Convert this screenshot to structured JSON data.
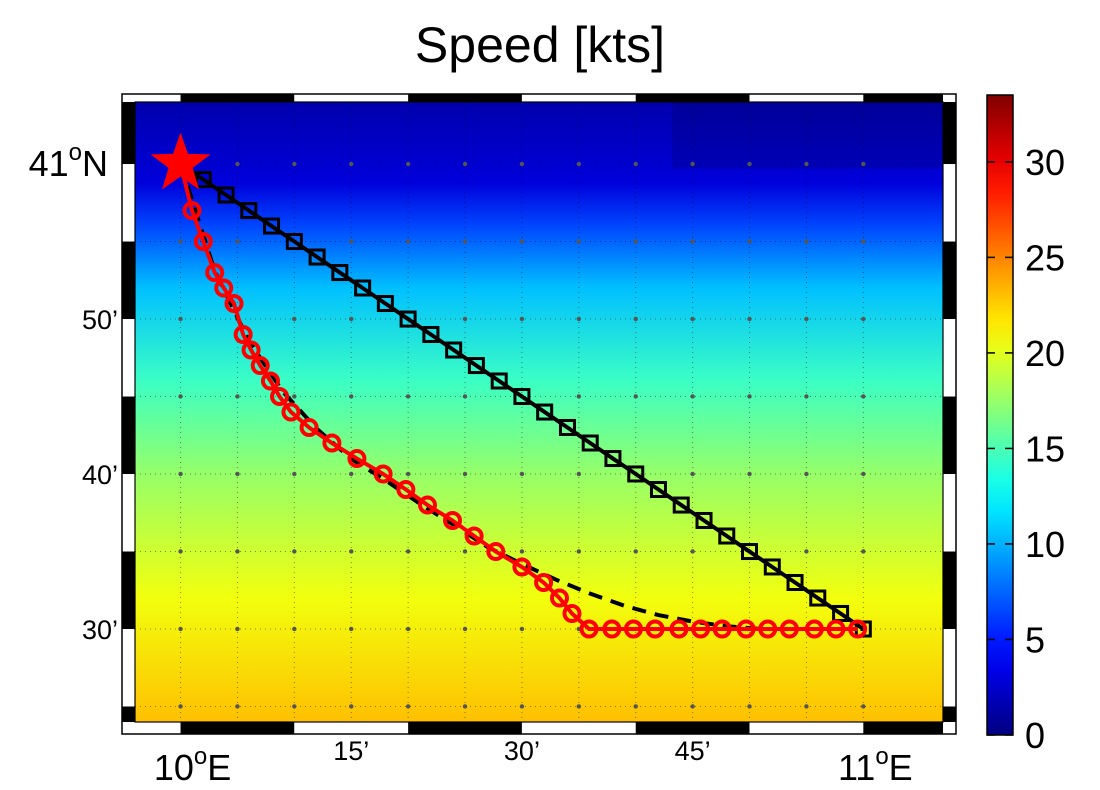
{
  "title": "Speed [kts]",
  "map": {
    "lon_range": [
      9.9333,
      11.1167
    ],
    "lat_range": [
      40.4,
      41.0667
    ],
    "lon_ticks": [
      {
        "value": 10.0,
        "main": "10",
        "sup": "o",
        "suffix": "E",
        "major": true
      },
      {
        "value": 10.25,
        "main": "15’",
        "sup": "",
        "suffix": "",
        "major": false
      },
      {
        "value": 10.5,
        "main": "30’",
        "sup": "",
        "suffix": "",
        "major": false
      },
      {
        "value": 10.75,
        "main": "45’",
        "sup": "",
        "suffix": "",
        "major": false
      },
      {
        "value": 11.0,
        "main": "11",
        "sup": "o",
        "suffix": "E",
        "major": true
      }
    ],
    "lat_ticks": [
      {
        "value": 41.0,
        "main": "41",
        "sup": "o",
        "suffix": "N",
        "major": true
      },
      {
        "value": 40.8333,
        "main": "50’",
        "sup": "",
        "suffix": "",
        "major": false
      },
      {
        "value": 40.6667,
        "main": "40’",
        "sup": "",
        "suffix": "",
        "major": false
      },
      {
        "value": 40.5,
        "main": "30’",
        "sup": "",
        "suffix": "",
        "major": false
      }
    ],
    "start_marker": {
      "lon": 10.0,
      "lat": 41.0,
      "color": "#ff0000",
      "shape": "star"
    },
    "background_field": "speed shading increasing southward (dark blue north to yellow south)"
  },
  "chart_data": {
    "type": "line",
    "title": "Speed [kts]",
    "xlabel": "",
    "ylabel": "",
    "xlim": [
      9.9333,
      11.1167
    ],
    "ylim": [
      40.4,
      41.0667
    ],
    "series": [
      {
        "style": "black line, square markers",
        "color": "#000000",
        "x": [
          10.0,
          10.0333,
          10.0667,
          10.1,
          10.1333,
          10.1667,
          10.2,
          10.2333,
          10.2667,
          10.3,
          10.3333,
          10.3667,
          10.4,
          10.4333,
          10.4667,
          10.5,
          10.5333,
          10.5667,
          10.6,
          10.6333,
          10.6667,
          10.7,
          10.7333,
          10.7667,
          10.8,
          10.8333,
          10.8667,
          10.9,
          10.9333,
          10.9667,
          11.0
        ],
        "y": [
          41.0,
          40.9833,
          40.9667,
          40.95,
          40.9333,
          40.9167,
          40.9,
          40.8833,
          40.8667,
          40.85,
          40.8333,
          40.8167,
          40.8,
          40.7833,
          40.7667,
          40.75,
          40.7333,
          40.7167,
          40.7,
          40.6833,
          40.6667,
          40.65,
          40.6333,
          40.6167,
          40.6,
          40.5833,
          40.5667,
          40.55,
          40.5333,
          40.5167,
          40.5
        ]
      },
      {
        "style": "red line, circle markers",
        "color": "#ff0000",
        "x": [
          10.0,
          10.0167,
          10.0333,
          10.05,
          10.0633,
          10.0783,
          10.0917,
          10.1033,
          10.1167,
          10.1317,
          10.145,
          10.1617,
          10.1883,
          10.2217,
          10.2583,
          10.2967,
          10.33,
          10.3617,
          10.3983,
          10.43,
          10.4617,
          10.5,
          10.5317,
          10.555,
          10.5733,
          10.5983,
          10.6317,
          10.6633,
          10.695,
          10.73,
          10.7617,
          10.7933,
          10.8283,
          10.86,
          10.8917,
          10.9283,
          10.96,
          10.9917
        ],
        "y": [
          41.0,
          40.95,
          40.9167,
          40.8833,
          40.8667,
          40.85,
          40.8167,
          40.8,
          40.7833,
          40.7667,
          40.75,
          40.7333,
          40.7167,
          40.7,
          40.6833,
          40.6667,
          40.65,
          40.6333,
          40.6167,
          40.6,
          40.5833,
          40.5667,
          40.55,
          40.5333,
          40.5167,
          40.5,
          40.5,
          40.5,
          40.5,
          40.5,
          40.5,
          40.5,
          40.5,
          40.5,
          40.5,
          40.5,
          40.5,
          40.5
        ]
      },
      {
        "style": "black dashed line",
        "color": "#000000",
        "x": [
          10.0,
          10.05,
          10.1,
          10.15,
          10.2,
          10.25,
          10.3,
          10.35,
          10.4,
          10.45,
          10.5,
          10.55,
          10.6,
          10.65,
          10.7,
          10.75,
          10.8,
          10.85,
          10.9,
          10.95,
          11.0
        ],
        "y": [
          41.0,
          40.885,
          40.81,
          40.755,
          40.715,
          40.683,
          40.66,
          40.635,
          40.612,
          40.588,
          40.57,
          40.553,
          40.538,
          40.525,
          40.515,
          40.508,
          40.503,
          40.5,
          40.5,
          40.5,
          40.5
        ]
      }
    ]
  },
  "colorbar": {
    "label_values": [
      "0",
      "5",
      "10",
      "15",
      "20",
      "25",
      "30"
    ],
    "range": [
      0,
      33.5
    ],
    "colormap": "jet"
  }
}
